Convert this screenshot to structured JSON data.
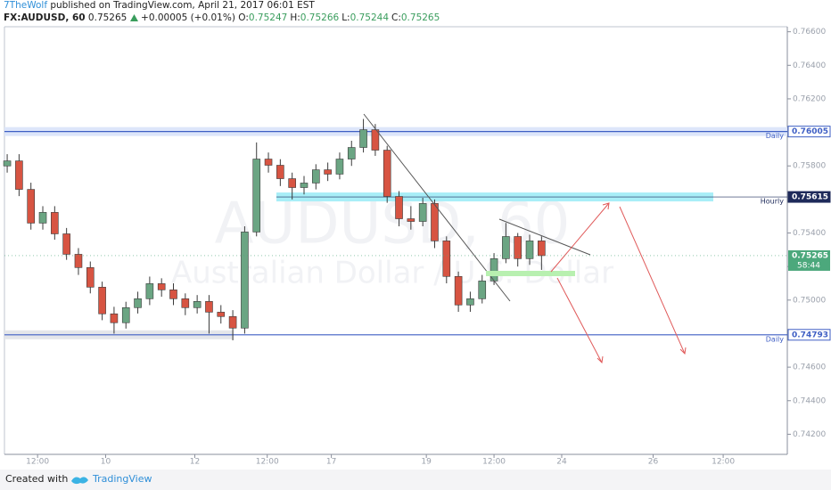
{
  "header": {
    "author": "7TheWolf",
    "published": "published on TradingView.com, April 21, 2017 06:01 EST",
    "symbol": "FX:AUDUSD, 60",
    "last": "0.75265",
    "change": "+0.00005 (+0.01%)",
    "ohlc": [
      {
        "label": "O:",
        "value": "0.75247"
      },
      {
        "label": "H:",
        "value": "0.75266"
      },
      {
        "label": "L:",
        "value": "0.75244"
      },
      {
        "label": "C:",
        "value": "0.75265"
      }
    ]
  },
  "chart_data": {
    "type": "candlestick",
    "watermark": "AUDUSD, 60",
    "watermark_subtitle": "Australian Dollar / U.S. Dollar",
    "up_color": "#6ba583",
    "down_color": "#d75442",
    "grid": false,
    "x": [
      0,
      1,
      2,
      3,
      4,
      5,
      6,
      7,
      8,
      9,
      10,
      11,
      12,
      13,
      14,
      15,
      16,
      17,
      18,
      19,
      20,
      21,
      22,
      23,
      24,
      25,
      26,
      27,
      28,
      29,
      30,
      31,
      32,
      33,
      34,
      35,
      36,
      37,
      38,
      39,
      40,
      41,
      42,
      43,
      44,
      45
    ],
    "open": [
      0.758,
      0.7583,
      0.7566,
      0.75459,
      0.75523,
      0.75395,
      0.75273,
      0.75194,
      0.75077,
      0.74918,
      0.74865,
      0.74955,
      0.75008,
      0.75098,
      0.75061,
      0.75008,
      0.74955,
      0.74992,
      0.74928,
      0.74902,
      0.74833,
      0.75406,
      0.75841,
      0.75804,
      0.75724,
      0.75671,
      0.75698,
      0.75777,
      0.75751,
      0.75841,
      0.7591,
      0.76016,
      0.75894,
      0.75618,
      0.75485,
      0.75469,
      0.75576,
      0.75353,
      0.75141,
      0.74971,
      0.75008,
      0.75114,
      0.75247,
      0.75379,
      0.75247,
      0.75353
    ],
    "high": [
      0.7587,
      0.7587,
      0.757,
      0.7556,
      0.7556,
      0.7543,
      0.7531,
      0.7523,
      0.7511,
      0.7496,
      0.7499,
      0.7505,
      0.7514,
      0.7513,
      0.751,
      0.7504,
      0.7503,
      0.7503,
      0.7497,
      0.7494,
      0.7544,
      0.7594,
      0.7588,
      0.7584,
      0.7576,
      0.7574,
      0.7581,
      0.7582,
      0.7588,
      0.7595,
      0.7608,
      0.7605,
      0.7592,
      0.7565,
      0.7556,
      0.7561,
      0.756,
      0.7538,
      0.7517,
      0.7505,
      0.7515,
      0.7528,
      0.7546,
      0.754,
      0.7539,
      0.7538
    ],
    "low": [
      0.7576,
      0.7562,
      0.7542,
      0.7542,
      0.7536,
      0.7524,
      0.7515,
      0.7504,
      0.7488,
      0.748,
      0.7483,
      0.7492,
      0.7497,
      0.7502,
      0.7497,
      0.7491,
      0.7492,
      0.748,
      0.7486,
      0.7476,
      0.748,
      0.7538,
      0.7576,
      0.7568,
      0.756,
      0.7563,
      0.7566,
      0.7571,
      0.7572,
      0.758,
      0.7588,
      0.7586,
      0.7558,
      0.7544,
      0.7542,
      0.7544,
      0.7531,
      0.751,
      0.7493,
      0.7493,
      0.7498,
      0.7509,
      0.7522,
      0.752,
      0.7521,
      0.7518
    ],
    "close": [
      0.7583,
      0.7566,
      0.75459,
      0.75523,
      0.75395,
      0.75273,
      0.75194,
      0.75077,
      0.74918,
      0.74865,
      0.74955,
      0.75008,
      0.75098,
      0.75061,
      0.75008,
      0.74955,
      0.74992,
      0.74928,
      0.74902,
      0.74833,
      0.75406,
      0.75841,
      0.75804,
      0.75724,
      0.75671,
      0.75698,
      0.75777,
      0.75751,
      0.75841,
      0.7591,
      0.76016,
      0.75894,
      0.75618,
      0.75485,
      0.75469,
      0.75576,
      0.75353,
      0.75141,
      0.74971,
      0.75008,
      0.75114,
      0.75247,
      0.75379,
      0.75247,
      0.75353,
      0.75265
    ],
    "xlim": [
      -0.23,
      65.7
    ],
    "xticks": [
      {
        "value": 2.56,
        "label": "12:00"
      },
      {
        "value": 8.29,
        "label": "10"
      },
      {
        "value": 15.8,
        "label": "12"
      },
      {
        "value": 21.9,
        "label": "12:00"
      },
      {
        "value": 27.3,
        "label": "17"
      },
      {
        "value": 35.3,
        "label": "19"
      },
      {
        "value": 41.0,
        "label": "12:00"
      },
      {
        "value": 46.7,
        "label": "24"
      },
      {
        "value": 54.4,
        "label": "26"
      },
      {
        "value": 60.3,
        "label": "12:00"
      }
    ],
    "ylim": [
      0.7408,
      0.7663
    ],
    "yticks": [
      {
        "value": 0.742,
        "label": "0.74200"
      },
      {
        "value": 0.744,
        "label": "0.74400"
      },
      {
        "value": 0.746,
        "label": "0.74600"
      },
      {
        "value": 0.748,
        "label": "0.74800"
      },
      {
        "value": 0.75,
        "label": "0.75000"
      },
      {
        "value": 0.752,
        "label": "0.75200"
      },
      {
        "value": 0.754,
        "label": "0.75400"
      },
      {
        "value": 0.756,
        "label": "0.75600"
      },
      {
        "value": 0.758,
        "label": "0.75800"
      },
      {
        "value": 0.76,
        "label": "0.76000"
      },
      {
        "value": 0.762,
        "label": "0.76200"
      },
      {
        "value": 0.764,
        "label": "0.76400"
      },
      {
        "value": 0.766,
        "label": "0.76600"
      }
    ],
    "levels": [
      {
        "price": 0.76005,
        "note": "Daily",
        "color": "#3f5fc4"
      },
      {
        "price": 0.75615,
        "note": "Hourly",
        "color": "#1e2a5a"
      },
      {
        "price": 0.74793,
        "note": "Daily",
        "color": "#3f5fc4"
      }
    ],
    "last_price": 0.75265,
    "countdown": "58:44",
    "last_color": "#4ca87c"
  },
  "footer": {
    "created": "Created with",
    "brand": "TradingView"
  }
}
